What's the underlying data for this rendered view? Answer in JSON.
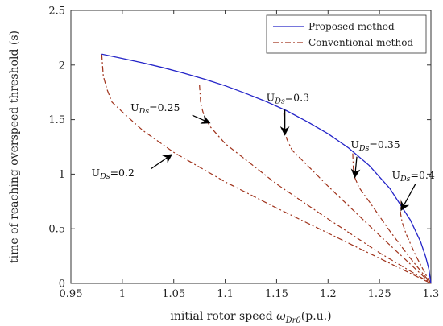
{
  "chart_data": {
    "type": "line",
    "xlabel": "initial rotor speed ω_Dr0(p.u.)",
    "ylabel": "time of reaching overspeed threshold (s)",
    "xlim": [
      0.95,
      1.3
    ],
    "ylim": [
      0,
      2.5
    ],
    "xticks": [
      0.95,
      1.0,
      1.05,
      1.1,
      1.15,
      1.2,
      1.25,
      1.3
    ],
    "xtick_labels": [
      "0.95",
      "1",
      "1.05",
      "1.1",
      "1.15",
      "1.2",
      "1.25",
      "1.3"
    ],
    "yticks": [
      0,
      0.5,
      1.0,
      1.5,
      2.0,
      2.5
    ],
    "ytick_labels": [
      "0",
      "0.5",
      "1",
      "1.5",
      "2",
      "2.5"
    ],
    "grid": false,
    "legend": {
      "position": "top-right",
      "entries": [
        {
          "label": "Proposed method",
          "color": "#2424c8",
          "dash": "solid"
        },
        {
          "label": "Conventional method",
          "color": "#a0331c",
          "dash": "dashdot"
        }
      ]
    },
    "proposed": {
      "name": "Proposed method",
      "color": "#2424c8",
      "x": [
        0.98,
        1.0,
        1.02,
        1.04,
        1.06,
        1.08,
        1.1,
        1.12,
        1.14,
        1.16,
        1.18,
        1.2,
        1.22,
        1.24,
        1.26,
        1.28,
        1.29,
        1.295,
        1.298,
        1.3
      ],
      "y": [
        2.1,
        2.06,
        2.02,
        1.975,
        1.925,
        1.87,
        1.81,
        1.74,
        1.665,
        1.58,
        1.48,
        1.37,
        1.24,
        1.08,
        0.87,
        0.58,
        0.38,
        0.24,
        0.13,
        0.0
      ]
    },
    "conventional": {
      "name": "Conventional method",
      "color": "#a0331c",
      "series": [
        {
          "name": "U_Ds=0.2",
          "x": [
            0.98,
            0.9815,
            0.985,
            0.99,
            1.0,
            1.02,
            1.05,
            1.1,
            1.15,
            1.2,
            1.25,
            1.3
          ],
          "y": [
            2.1,
            1.9,
            1.78,
            1.66,
            1.57,
            1.4,
            1.2,
            0.93,
            0.69,
            0.46,
            0.23,
            0.0
          ]
        },
        {
          "name": "U_Ds=0.25",
          "x": [
            1.075,
            1.0763,
            1.079,
            1.085,
            1.1,
            1.15,
            1.2,
            1.25,
            1.3
          ],
          "y": [
            1.82,
            1.64,
            1.55,
            1.44,
            1.28,
            0.91,
            0.59,
            0.28,
            0.0
          ]
        },
        {
          "name": "U_Ds=0.3",
          "x": [
            1.157,
            1.1578,
            1.16,
            1.165,
            1.18,
            1.2,
            1.25,
            1.3
          ],
          "y": [
            1.56,
            1.4,
            1.32,
            1.22,
            1.08,
            0.89,
            0.44,
            0.0
          ]
        },
        {
          "name": "U_Ds=0.35",
          "x": [
            1.224,
            1.2246,
            1.226,
            1.23,
            1.24,
            1.26,
            1.28,
            1.3
          ],
          "y": [
            1.19,
            1.05,
            0.97,
            0.88,
            0.75,
            0.48,
            0.23,
            0.0
          ]
        },
        {
          "name": "U_Ds=0.4",
          "x": [
            1.27,
            1.2705,
            1.272,
            1.276,
            1.285,
            1.295,
            1.3
          ],
          "y": [
            0.77,
            0.64,
            0.56,
            0.45,
            0.26,
            0.08,
            0.0
          ]
        }
      ]
    },
    "annotations": [
      {
        "main": "U",
        "sub": "Ds",
        "value": "=0.2",
        "text_at": [
          0.97,
          0.98
        ],
        "arrow_tail": [
          1.028,
          1.05
        ],
        "arrow_head": [
          1.048,
          1.18
        ]
      },
      {
        "main": "U",
        "sub": "Ds",
        "value": "=0.25",
        "text_at": [
          1.008,
          1.58
        ],
        "arrow_tail": [
          1.068,
          1.54
        ],
        "arrow_head": [
          1.085,
          1.47
        ]
      },
      {
        "main": "U",
        "sub": "Ds",
        "value": "=0.3",
        "text_at": [
          1.14,
          1.67
        ],
        "arrow_tail": [
          1.158,
          1.59
        ],
        "arrow_head": [
          1.158,
          1.36
        ]
      },
      {
        "main": "U",
        "sub": "Ds",
        "value": "=0.35",
        "text_at": [
          1.222,
          1.24
        ],
        "arrow_tail": [
          1.228,
          1.16
        ],
        "arrow_head": [
          1.226,
          0.97
        ]
      },
      {
        "main": "U",
        "sub": "Ds",
        "value": "=0.4",
        "text_at": [
          1.262,
          0.96
        ],
        "arrow_tail": [
          1.285,
          0.91
        ],
        "arrow_head": [
          1.271,
          0.67
        ]
      }
    ]
  }
}
